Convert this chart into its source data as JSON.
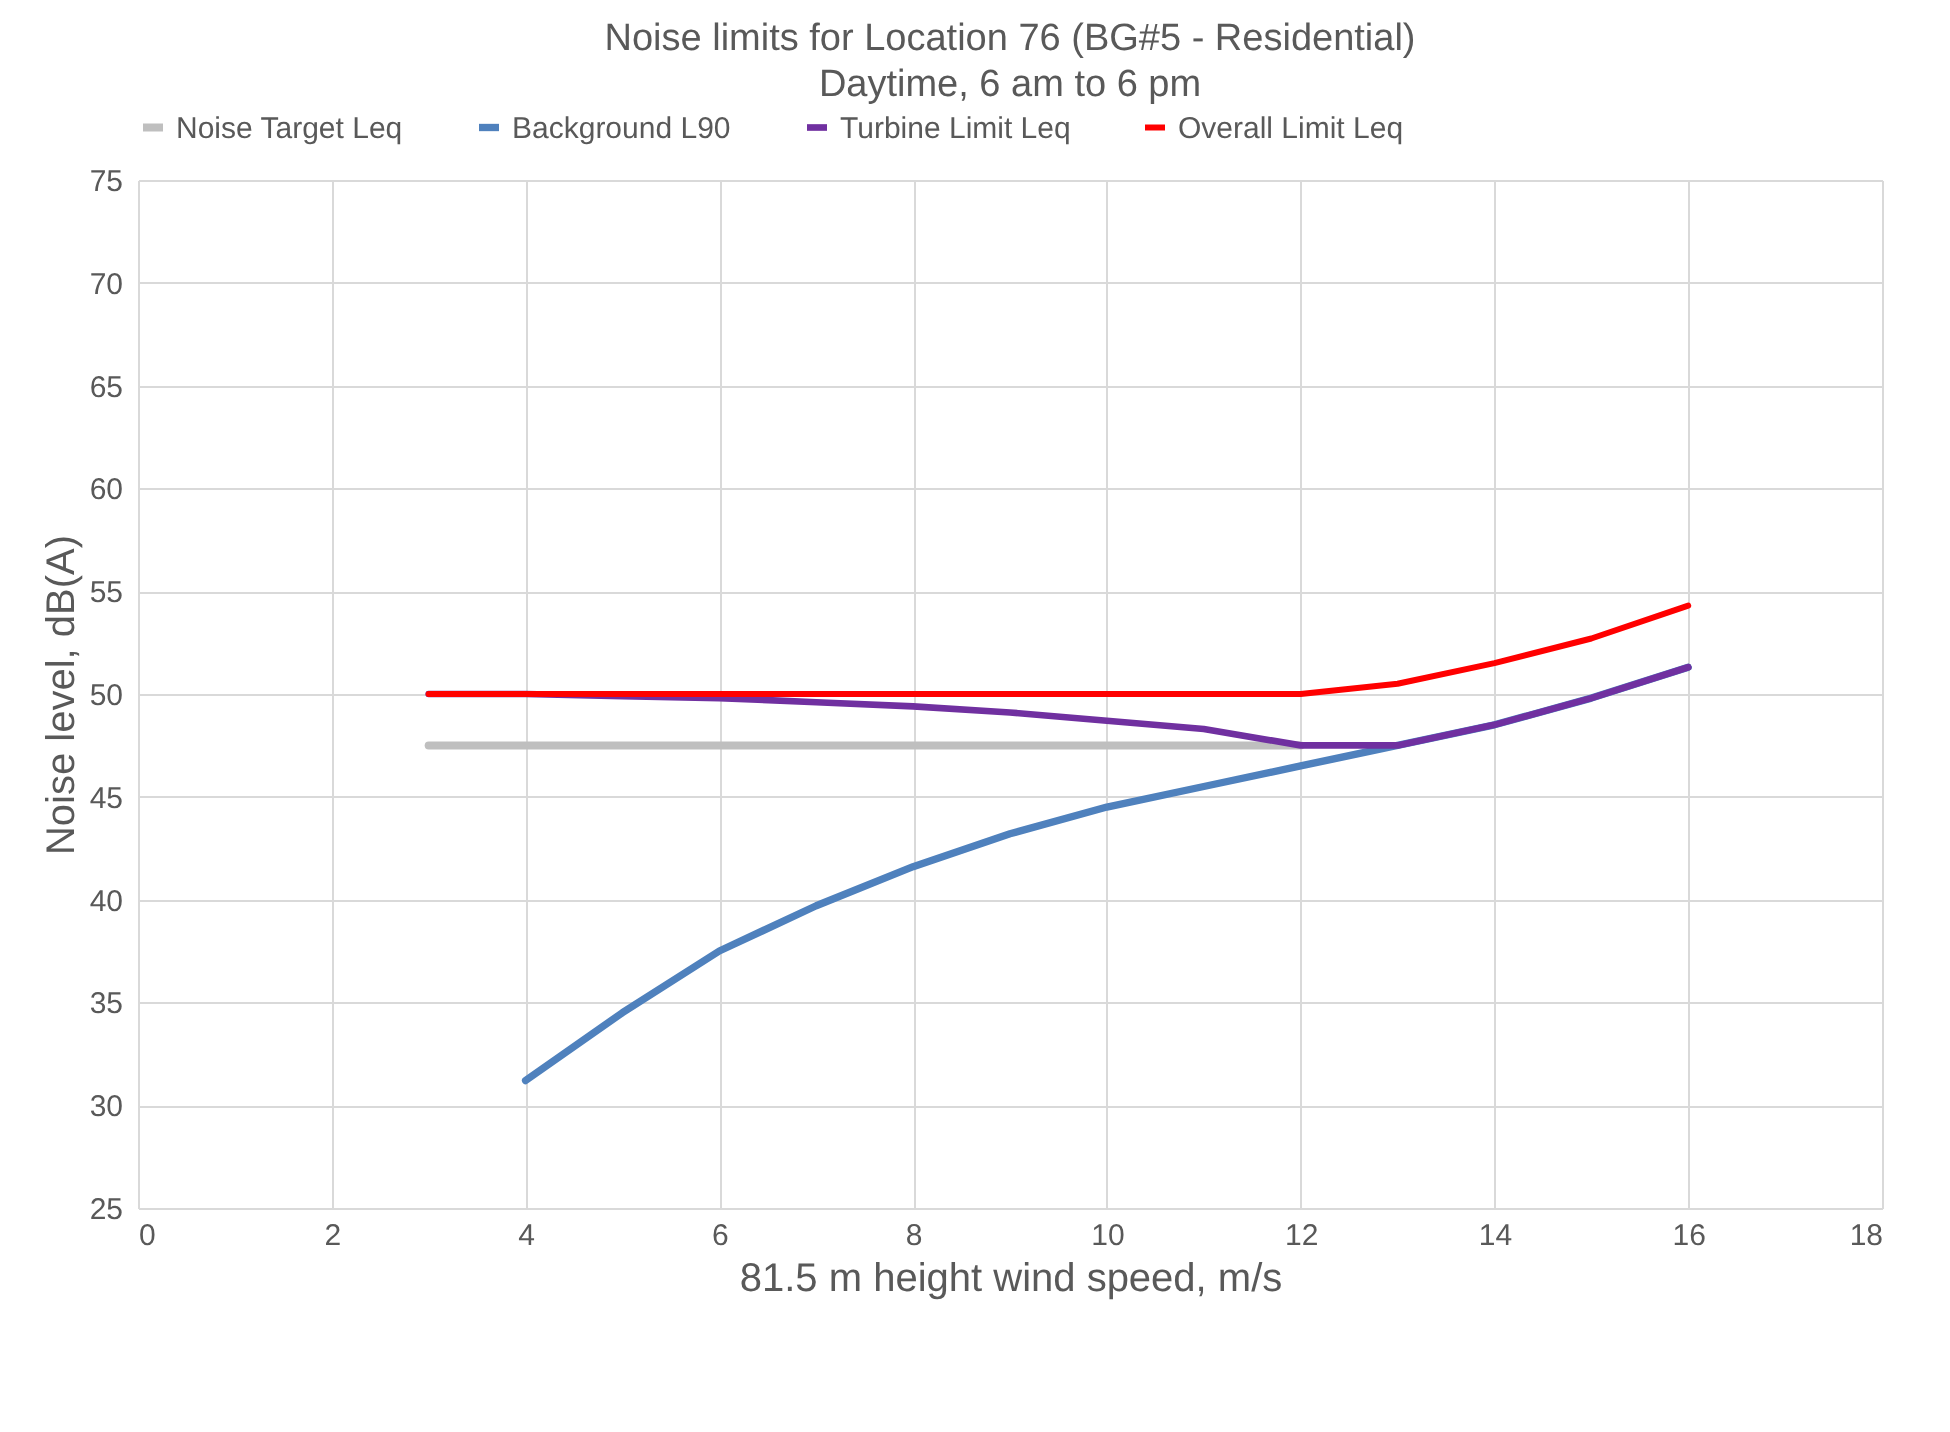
{
  "chart_data": {
    "type": "line",
    "title": "Noise limits for Location 76 (BG#5 - Residential)",
    "subtitle": "Daytime, 6 am to 6 pm",
    "xlabel": "81.5 m height wind speed, m/s",
    "ylabel": "Noise level, dB(A)",
    "xlim": [
      0,
      18
    ],
    "xticks": [
      0,
      2,
      4,
      6,
      8,
      10,
      12,
      14,
      16,
      18
    ],
    "ylim": [
      25,
      75
    ],
    "yticks": [
      25,
      30,
      35,
      40,
      45,
      50,
      55,
      60,
      65,
      70,
      75
    ],
    "grid": true,
    "legend": "top",
    "marker": "none",
    "line_style": "solid",
    "series": [
      {
        "name": "Noise Target Leq",
        "color": "#bfbfbf",
        "x": [
          3,
          4,
          5,
          6,
          7,
          8,
          9,
          10,
          11,
          12
        ],
        "values": [
          47.5,
          47.5,
          47.5,
          47.5,
          47.5,
          47.5,
          47.5,
          47.5,
          47.5,
          47.5
        ]
      },
      {
        "name": "Background L90",
        "color": "#4f81bd",
        "x": [
          4,
          5,
          6,
          7,
          8,
          9,
          10,
          11,
          12,
          13,
          14,
          15,
          16
        ],
        "values": [
          31.2,
          34.5,
          37.5,
          39.7,
          41.6,
          43.2,
          44.5,
          45.5,
          46.5,
          47.5,
          48.5,
          49.8,
          51.3
        ]
      },
      {
        "name": "Turbine Limit Leq",
        "color": "#7030a0",
        "x": [
          3,
          4,
          5,
          6,
          7,
          8,
          9,
          10,
          11,
          12,
          13,
          14,
          15,
          16
        ],
        "values": [
          50,
          50,
          49.9,
          49.8,
          49.6,
          49.4,
          49.1,
          48.7,
          48.3,
          47.5,
          47.5,
          48.5,
          49.8,
          51.3
        ]
      },
      {
        "name": "Overall Limit Leq",
        "color": "#ff0000",
        "x": [
          3,
          4,
          5,
          6,
          7,
          8,
          9,
          10,
          11,
          12,
          13,
          14,
          15,
          16
        ],
        "values": [
          50,
          50,
          50,
          50,
          50,
          50,
          50,
          50,
          50,
          50,
          50.5,
          51.5,
          52.7,
          54.3
        ]
      }
    ]
  }
}
